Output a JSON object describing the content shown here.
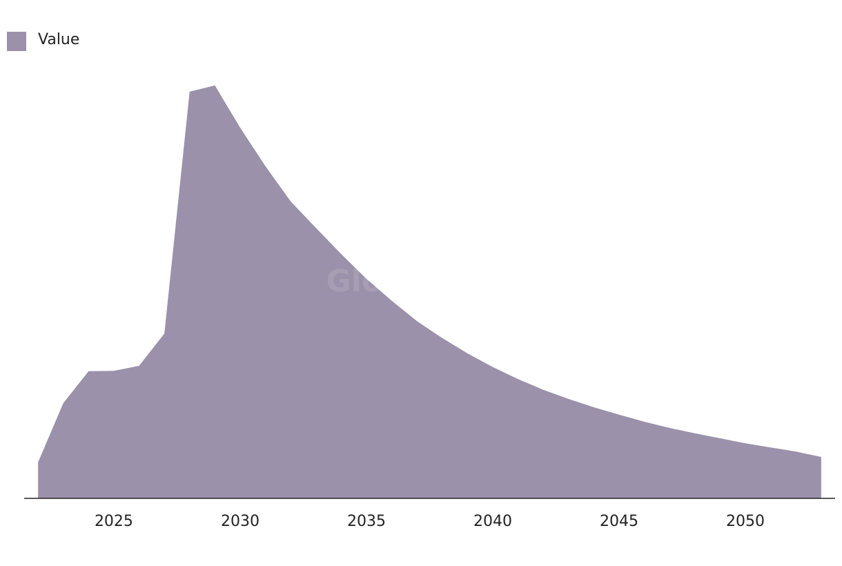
{
  "chart_data": {
    "type": "area",
    "watermark": "GlobalData",
    "x": [
      2022,
      2023,
      2024,
      2025,
      2026,
      2027,
      2028,
      2029,
      2030,
      2031,
      2032,
      2033,
      2034,
      2035,
      2036,
      2037,
      2038,
      2039,
      2040,
      2041,
      2042,
      2043,
      2044,
      2045,
      2046,
      2047,
      2048,
      2049,
      2050,
      2051,
      2052,
      2053
    ],
    "series": [
      {
        "name": "Value",
        "color": "#9b91aa",
        "values": [
          8.7,
          23,
          30.7,
          30.8,
          32,
          39.8,
          98.2,
          99.7,
          89.5,
          80.2,
          71.7,
          65.3,
          59,
          53,
          47.7,
          42.8,
          38.7,
          35,
          31.7,
          28.8,
          26.2,
          24,
          22,
          20.2,
          18.5,
          17,
          15.7,
          14.5,
          13.3,
          12.3,
          11.3,
          10
        ]
      }
    ],
    "xlim": [
      2021.45,
      2053.55
    ],
    "xticks": [
      2025,
      2030,
      2035,
      2040,
      2045,
      2050
    ],
    "ylim": [
      0,
      100
    ]
  }
}
